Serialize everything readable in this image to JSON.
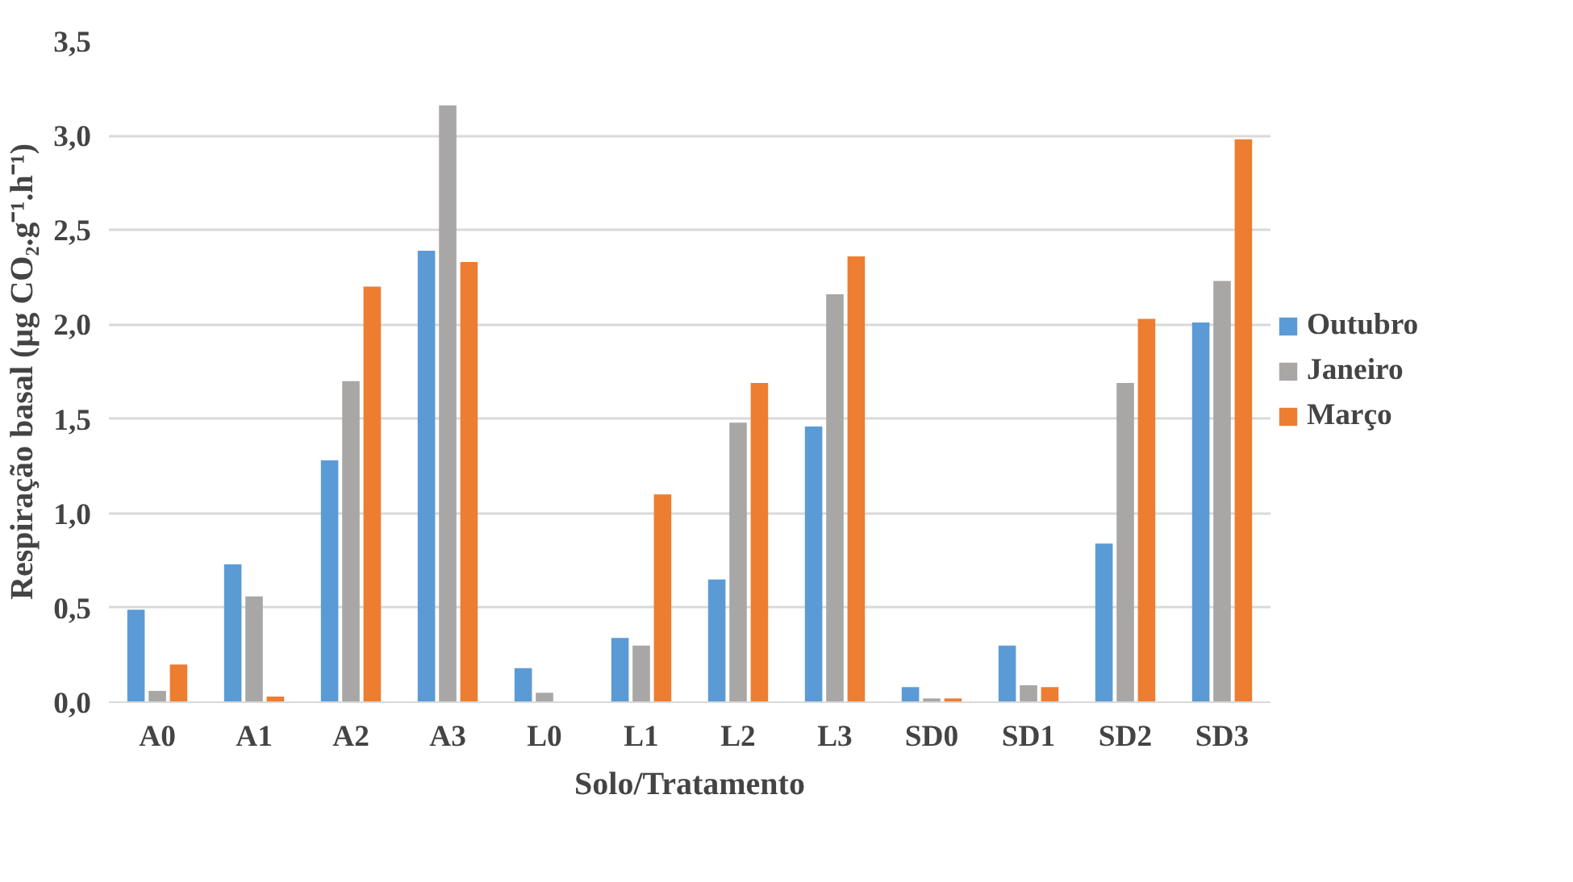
{
  "chart_data": {
    "type": "bar",
    "xlabel": "Solo/Tratamento",
    "ylabel": "Respiração basal (µg CO₂.g⁻¹.h⁻¹)",
    "categories": [
      "A0",
      "A1",
      "A2",
      "A3",
      "L0",
      "L1",
      "L2",
      "L3",
      "SD0",
      "SD1",
      "SD2",
      "SD3"
    ],
    "series": [
      {
        "name": "Outubro",
        "color": "#5b9bd5",
        "values": [
          0.49,
          0.73,
          1.28,
          2.39,
          0.18,
          0.34,
          0.65,
          1.46,
          0.08,
          0.3,
          0.84,
          2.01
        ]
      },
      {
        "name": "Janeiro",
        "color": "#a9a6a6",
        "values": [
          0.06,
          0.56,
          1.7,
          3.16,
          0.05,
          0.3,
          1.48,
          2.16,
          0.02,
          0.09,
          1.69,
          2.23
        ]
      },
      {
        "name": "Março",
        "color": "#ed7d31",
        "values": [
          0.2,
          0.03,
          2.2,
          2.33,
          0,
          1.1,
          1.69,
          2.36,
          0.02,
          0.08,
          2.03,
          2.98
        ]
      }
    ],
    "ylim": [
      0,
      3.5
    ],
    "yticks": [
      {
        "value": 0,
        "label": "0,0"
      },
      {
        "value": 0.5,
        "label": "0,5"
      },
      {
        "value": 1,
        "label": "1,0"
      },
      {
        "value": 1.5,
        "label": "1,5"
      },
      {
        "value": 2,
        "label": "2,0"
      },
      {
        "value": 2.5,
        "label": "2,5"
      },
      {
        "value": 3,
        "label": "3,0"
      },
      {
        "value": 3.5,
        "label": "3,5"
      }
    ],
    "grid": "y",
    "legend": "right"
  }
}
